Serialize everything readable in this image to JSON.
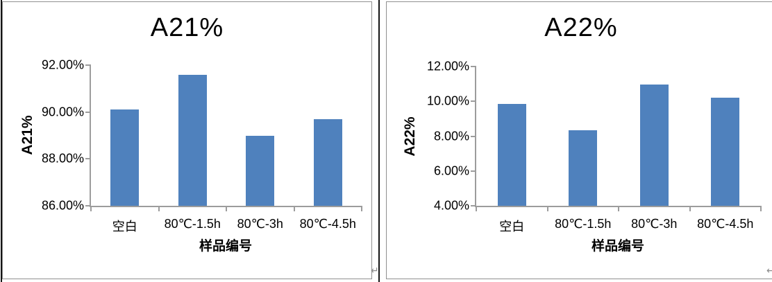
{
  "page": {
    "paragraph_mark": "↵"
  },
  "styles": {
    "bar_color": "#4f81bd",
    "axis_color": "#9c9c9c",
    "panel_border_color": "#8f8f8f",
    "divider_color": "#141414",
    "text_color": "#000000"
  },
  "chart_data": [
    {
      "type": "bar",
      "title": "A21%",
      "ylabel": "A21%",
      "xlabel": "样品编号",
      "categories": [
        "空白",
        "80℃-1.5h",
        "80℃-3h",
        "80℃-4.5h"
      ],
      "values": [
        90.1,
        91.6,
        89.0,
        89.7
      ],
      "value_unit": "%",
      "ylim": [
        86,
        92
      ],
      "ytick_labels_top_to_bottom": [
        "92.00%",
        "90.00%",
        "88.00%",
        "86.00%"
      ],
      "grid": false,
      "legend": "none"
    },
    {
      "type": "bar",
      "title": "A22%",
      "ylabel": "A22%",
      "xlabel": "样品编号",
      "categories": [
        "空白",
        "80℃-1.5h",
        "80℃-3h",
        "80℃-4.5h"
      ],
      "values": [
        9.85,
        8.35,
        10.95,
        10.2
      ],
      "value_unit": "%",
      "ylim": [
        4,
        12
      ],
      "ytick_labels_top_to_bottom": [
        "12.00%",
        "10.00%",
        "8.00%",
        "6.00%",
        "4.00%"
      ],
      "grid": false,
      "legend": "none"
    }
  ]
}
